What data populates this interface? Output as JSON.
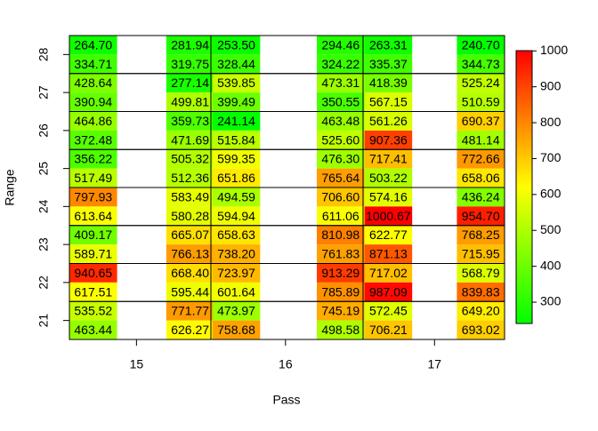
{
  "chart_data": {
    "type": "heatmap",
    "x_label": "Pass",
    "y_label": "Range",
    "xlim": [
      14.55,
      17.47
    ],
    "xticks": [
      15,
      16,
      17
    ],
    "ylim": [
      20.5,
      28.5
    ],
    "yticks": [
      21,
      22,
      23,
      24,
      25,
      26,
      27,
      28
    ],
    "x": [
      14.71,
      15.36,
      15.67,
      16.37,
      16.69,
      17.31
    ],
    "y": [
      28.25,
      27.75,
      27.25,
      26.75,
      26.25,
      25.75,
      25.25,
      24.75,
      24.25,
      23.75,
      23.25,
      22.75,
      22.25,
      21.75,
      21.25,
      20.75
    ],
    "values": [
      [
        264.7,
        281.94,
        253.5,
        294.46,
        263.31,
        240.7
      ],
      [
        334.71,
        319.75,
        328.44,
        324.22,
        335.37,
        344.73
      ],
      [
        428.64,
        277.14,
        539.85,
        473.31,
        418.39,
        525.24
      ],
      [
        390.94,
        499.81,
        399.49,
        350.55,
        567.15,
        510.59
      ],
      [
        464.86,
        359.73,
        241.14,
        463.48,
        561.26,
        690.37
      ],
      [
        372.48,
        471.69,
        515.84,
        525.6,
        907.36,
        481.14
      ],
      [
        356.22,
        505.32,
        599.35,
        476.3,
        717.41,
        772.66
      ],
      [
        517.49,
        512.36,
        651.86,
        765.64,
        503.22,
        658.06
      ],
      [
        797.93,
        583.49,
        494.59,
        706.6,
        574.16,
        436.24
      ],
      [
        613.64,
        580.28,
        594.94,
        611.06,
        1000.67,
        954.7
      ],
      [
        409.17,
        665.07,
        658.63,
        810.98,
        622.77,
        768.25
      ],
      [
        589.71,
        766.13,
        738.2,
        761.83,
        871.13,
        715.95
      ],
      [
        940.65,
        668.4,
        723.97,
        913.29,
        717.02,
        568.79
      ],
      [
        617.51,
        595.44,
        601.64,
        785.89,
        987.09,
        839.83
      ],
      [
        535.52,
        771.77,
        473.97,
        745.19,
        572.45,
        649.2
      ],
      [
        463.44,
        626.27,
        758.68,
        498.58,
        706.21,
        693.02
      ]
    ],
    "value_labels": [
      [
        "264.70",
        "281.94",
        "253.50",
        "294.46",
        "263.31",
        "240.70"
      ],
      [
        "334.71",
        "319.75",
        "328.44",
        "324.22",
        "335.37",
        "344.73"
      ],
      [
        "428.64",
        "277.14",
        "539.85",
        "473.31",
        "418.39",
        "525.24"
      ],
      [
        "390.94",
        "499.81",
        "399.49",
        "350.55",
        "567.15",
        "510.59"
      ],
      [
        "464.86",
        "359.73",
        "241.14",
        "463.48",
        "561.26",
        "690.37"
      ],
      [
        "372.48",
        "471.69",
        "515.84",
        "525.60",
        "907.36",
        "481.14"
      ],
      [
        "356.22",
        "505.32",
        "599.35",
        "476.30",
        "717.41",
        "772.66"
      ],
      [
        "517.49",
        "512.36",
        "651.86",
        "765.64",
        "503.22",
        "658.06"
      ],
      [
        "797.93",
        "583.49",
        "494.59",
        "706.60",
        "574.16",
        "436.24"
      ],
      [
        "613.64",
        "580.28",
        "594.94",
        "611.06",
        "1000.67",
        "954.70"
      ],
      [
        "409.17",
        "665.07",
        "658.63",
        "810.98",
        "622.77",
        "768.25"
      ],
      [
        "589.71",
        "766.13",
        "738.20",
        "761.83",
        "871.13",
        "715.95"
      ],
      [
        "940.65",
        "668.40",
        "723.97",
        "913.29",
        "717.02",
        "568.79"
      ],
      [
        "617.51",
        "595.44",
        "601.64",
        "785.89",
        "987.09",
        "839.83"
      ],
      [
        "535.52",
        "771.77",
        "473.97",
        "745.19",
        "572.45",
        "649.20"
      ],
      [
        "463.44",
        "626.27",
        "758.68",
        "498.58",
        "706.21",
        "693.02"
      ]
    ],
    "colors": [
      "#00ff00",
      "#ffff00",
      "#ff0000"
    ],
    "zlim": [
      240.7,
      1000.67
    ],
    "zticks": [
      300,
      400,
      500,
      600,
      700,
      800,
      900,
      1000
    ]
  }
}
